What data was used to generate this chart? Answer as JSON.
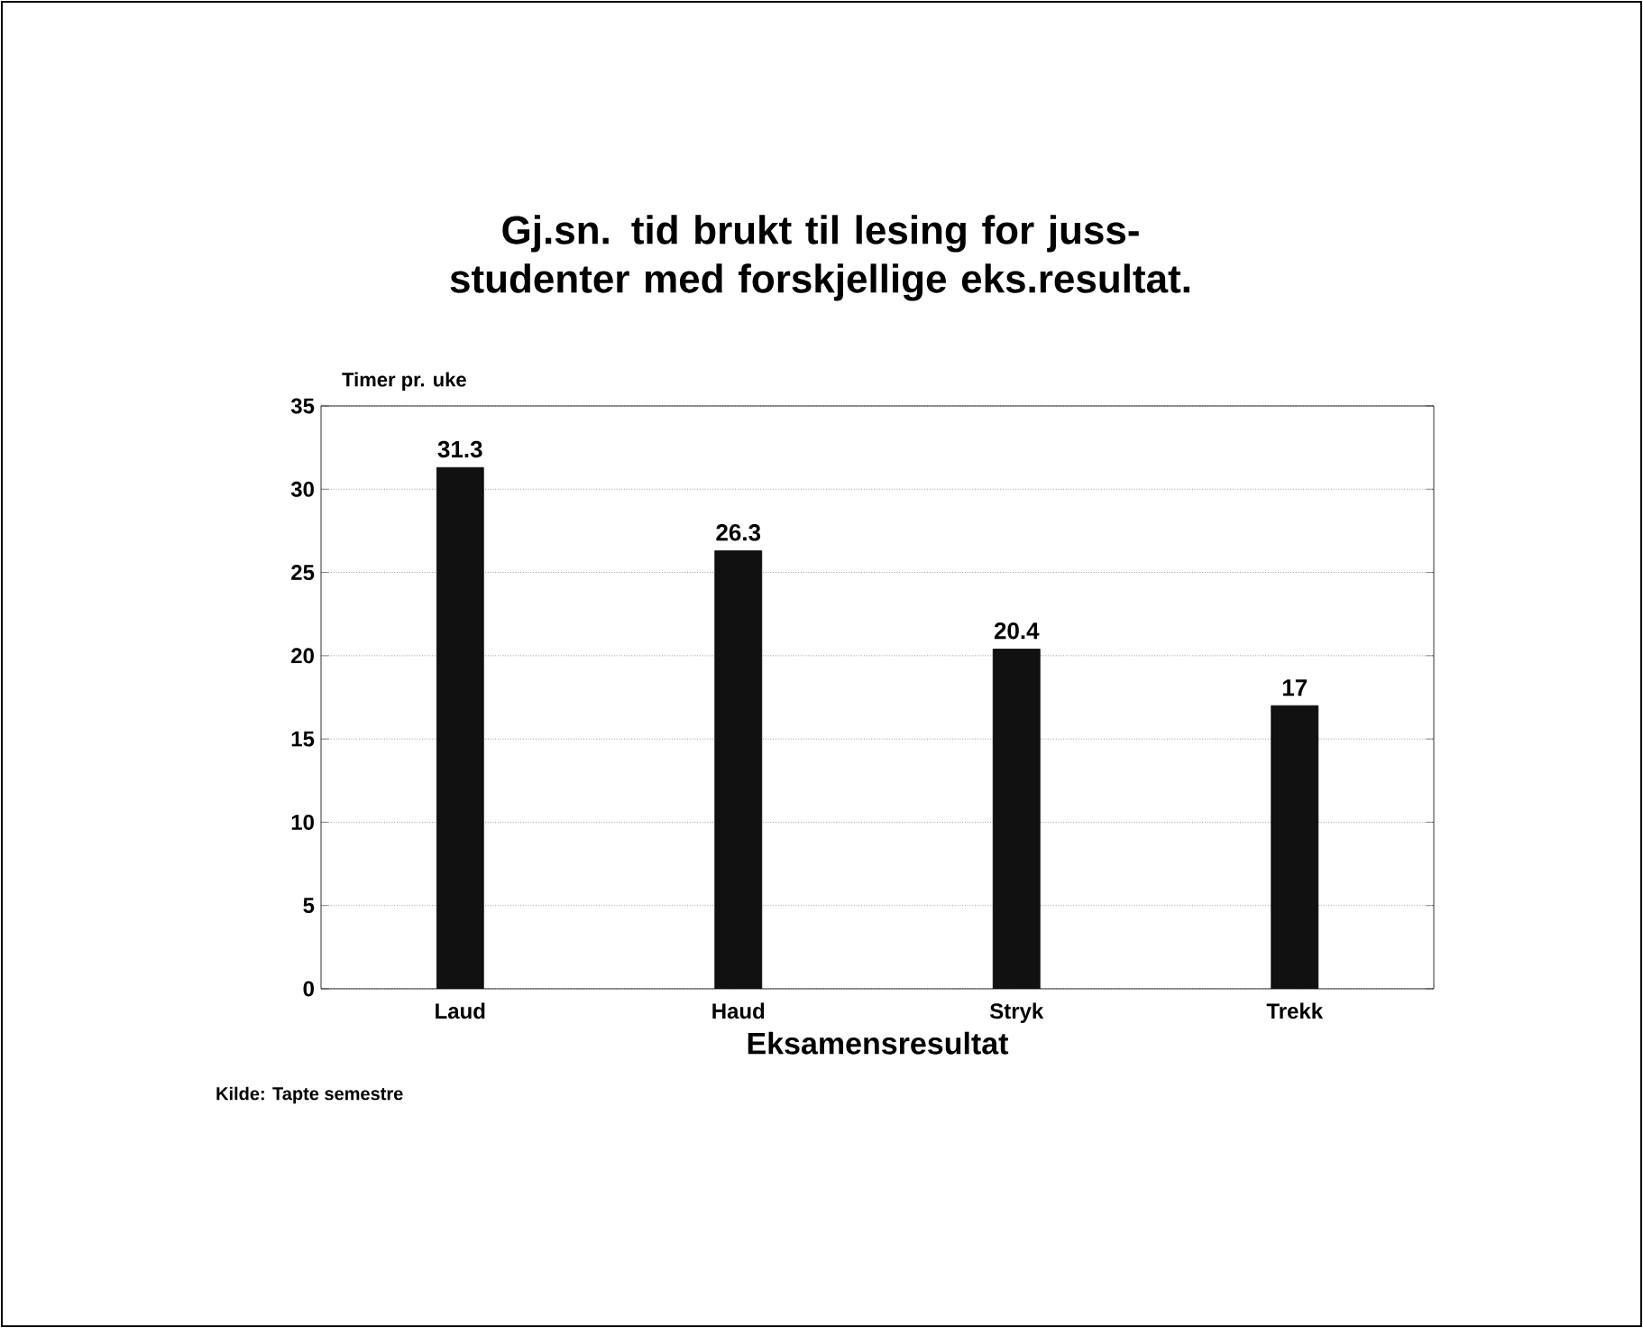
{
  "chart_data": {
    "type": "bar",
    "title": "Gj.sn. tid brukt til lesing for juss-studenter med forskjellige eks.resultat.",
    "ylabel": "Timer pr. uke",
    "xlabel": "Eksamensresultat",
    "annotations": [
      "Kilde: Tapte semestre"
    ],
    "categories": [
      "Laud",
      "Haud",
      "Stryk",
      "Trekk"
    ],
    "values": [
      31.3,
      26.3,
      20.4,
      17
    ],
    "color": "#111111",
    "ylim": [
      0,
      35
    ],
    "yticks": [
      0,
      5,
      10,
      15,
      20,
      25,
      30,
      35
    ],
    "grid": "y",
    "data_labels": true
  }
}
